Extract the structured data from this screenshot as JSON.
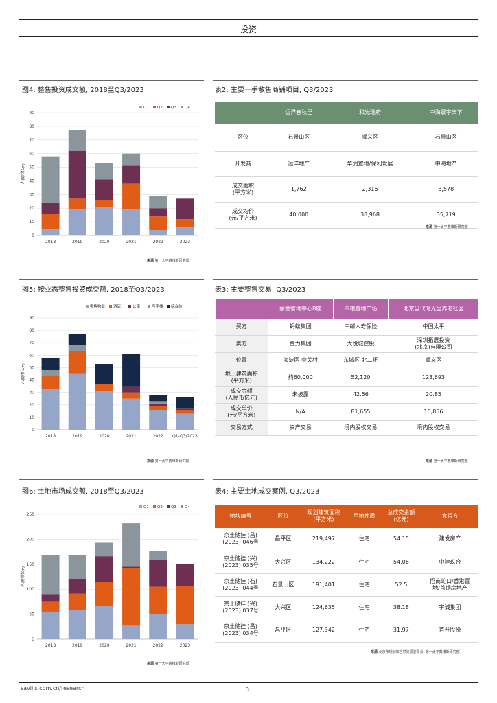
{
  "header": {
    "title": "投资"
  },
  "fig4": {
    "title": "图4: 整售投资成交额, 2018至Q3/2023",
    "ylabel": "人民币亿元",
    "source_label": "来源",
    "source_text": "第一太平戴维斯研究部",
    "chart_data": {
      "type": "bar",
      "stacked": true,
      "categories": [
        "2018",
        "2019",
        "2020",
        "2021",
        "2022",
        "2023"
      ],
      "ylim": [
        0,
        90
      ],
      "yticks": [
        0,
        10,
        20,
        30,
        40,
        50,
        60,
        70,
        80,
        90
      ],
      "series": [
        {
          "name": "Q1",
          "color": "#95a6c8",
          "values": [
            5,
            19,
            21,
            19,
            4,
            6
          ]
        },
        {
          "name": "Q2",
          "color": "#e05c17",
          "values": [
            11,
            8,
            5,
            19,
            10,
            6
          ]
        },
        {
          "name": "Q3",
          "color": "#6e3052",
          "values": [
            8,
            35,
            15,
            13,
            6,
            15
          ]
        },
        {
          "name": "Q4",
          "color": "#8a969b",
          "values": [
            34,
            15,
            12,
            9,
            9,
            0
          ]
        }
      ]
    }
  },
  "fig5": {
    "title": "图5: 按业态整售投资成交额, 2018至Q3/2023",
    "ylabel": "人民币亿元",
    "source_label": "来源",
    "source_text": "第一太平戴维斯研究部",
    "chart_data": {
      "type": "bar",
      "stacked": true,
      "categories": [
        "2018",
        "2019",
        "2020",
        "2021",
        "2022",
        "Q1-Q3/2023"
      ],
      "ylim": [
        0,
        90
      ],
      "yticks": [
        0,
        10,
        20,
        30,
        40,
        50,
        60,
        70,
        80,
        90
      ],
      "series": [
        {
          "name": "零售物业",
          "color": "#95a6c8",
          "values": [
            33,
            45,
            31,
            25,
            16,
            13
          ]
        },
        {
          "name": "酒店",
          "color": "#e05c17",
          "values": [
            11,
            18,
            6,
            5,
            3,
            3
          ]
        },
        {
          "name": "公寓",
          "color": "#6e3052",
          "values": [
            0,
            0,
            0,
            5,
            2,
            1
          ]
        },
        {
          "name": "写字楼",
          "color": "#8a969b",
          "values": [
            4,
            5,
            0,
            0,
            2,
            0
          ]
        },
        {
          "name": "综合体",
          "color": "#152847",
          "values": [
            10,
            9,
            16,
            26,
            5,
            9
          ]
        }
      ]
    }
  },
  "fig6": {
    "title": "图6: 土地市场成交额, 2018至Q3/2023",
    "ylabel": "人民币亿元",
    "source_label": "来源",
    "source_text": "第一太平戴维斯研究部",
    "chart_data": {
      "type": "bar",
      "stacked": true,
      "categories": [
        "2018",
        "2019",
        "2020",
        "2021",
        "2022",
        "2023"
      ],
      "ylim": [
        0,
        250
      ],
      "yticks": [
        0,
        50,
        100,
        150,
        200,
        250
      ],
      "series": [
        {
          "name": "Q1",
          "color": "#95a6c8",
          "values": [
            55,
            58,
            67,
            27,
            50,
            30
          ]
        },
        {
          "name": "Q2",
          "color": "#e05c17",
          "values": [
            20,
            33,
            47,
            115,
            55,
            77
          ]
        },
        {
          "name": "Q3",
          "color": "#6e3052",
          "values": [
            15,
            29,
            52,
            3,
            53,
            43
          ]
        },
        {
          "name": "Q4",
          "color": "#8a969b",
          "values": [
            78,
            49,
            27,
            87,
            19,
            0
          ]
        }
      ]
    }
  },
  "table2": {
    "title": "表2: 主要一手散售商铺项目, Q3/2023",
    "headers": [
      "",
      "远洋春秋里",
      "和光瑞府",
      "中海寰宇天下"
    ],
    "rows": [
      [
        "区位",
        "石景山区",
        "顺义区",
        "石景山区"
      ],
      [
        "开发商",
        "远洋地产",
        "华润置地/保利发展",
        "中海地产"
      ],
      [
        "成交面积\n(平方米)",
        "1,762",
        "2,316",
        "3,578"
      ],
      [
        "成交均价\n(元/平方米)",
        "40,000",
        "38,968",
        "35,719"
      ]
    ],
    "source_label": "来源",
    "source_text": "第一太平戴维斯研究部"
  },
  "table3": {
    "title": "表3: 主要整售交易, Q3/2023",
    "headers": [
      "",
      "丽金智地中心B座",
      "中粮置地广场",
      "北京当代时光里养老社区"
    ],
    "rows": [
      [
        "买方",
        "蚂蚁集团",
        "中邮人寿保险",
        "中国太平"
      ],
      [
        "卖方",
        "金力集团",
        "大悦城控股",
        "深圳拓展投资\n(北京)有限公司"
      ],
      [
        "位置",
        "海淀区 中关村",
        "东城区 北二环",
        "顺义区"
      ],
      [
        "地上建筑面积\n(平方米)",
        "约60,000",
        "52,120",
        "123,693"
      ],
      [
        "成交金额\n(人民币亿元)",
        "未披露",
        "42.56",
        "20.85"
      ],
      [
        "成交单价\n(元/平方米)",
        "N/A",
        "81,655",
        "16,856"
      ],
      [
        "交易方式",
        "资产交易",
        "境内股权交易",
        "境内股权交易"
      ]
    ],
    "source_label": "来源",
    "source_text": "第一太平戴维斯研究部"
  },
  "table4": {
    "title": "表4: 主要土地成交案例, Q3/2023",
    "headers": [
      "地块编号",
      "区位",
      "规划建筑面积\n(平方米)",
      "用地性质",
      "总成交金额\n(亿元)",
      "竞得方"
    ],
    "rows": [
      [
        "京土储挂 (昌)\n(2023) 046号",
        "昌平区",
        "219,497",
        "住宅",
        "54.15",
        "建发房产"
      ],
      [
        "京土储挂 (兴)\n(2023) 035号",
        "大兴区",
        "134,222",
        "住宅",
        "54.06",
        "中建玖合"
      ],
      [
        "京土储挂 (石)\n(2023) 044号",
        "石景山区",
        "191,401",
        "住宅",
        "52.5",
        "招商蛇口/香港置\n地/首钢房地产"
      ],
      [
        "京土储挂 (兴)\n(2023) 037号",
        "大兴区",
        "124,635",
        "住宅",
        "38.18",
        "宇诚集团"
      ],
      [
        "京土储挂 (昌)\n(2023) 034号",
        "昌平区",
        "127,342",
        "住宅",
        "31.97",
        "首开股份"
      ]
    ],
    "source_label": "来源",
    "source_text": "北京市规划和自然资源委员会, 第一太平戴维斯研究部"
  },
  "footer": {
    "url": "savills.com.cn/research",
    "page": "3"
  }
}
